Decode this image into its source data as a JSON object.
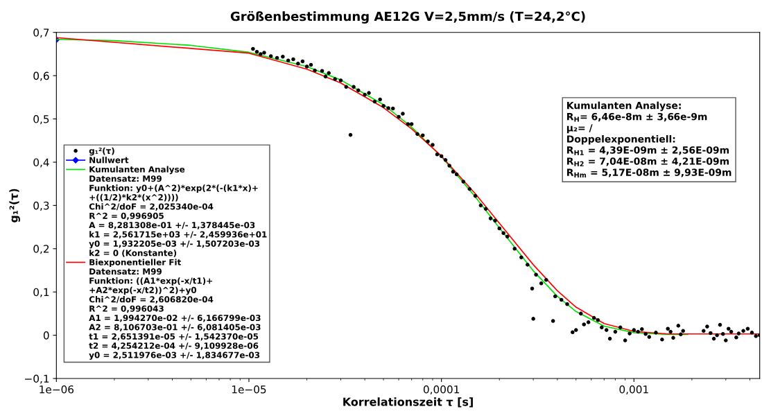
{
  "chart_data": {
    "type": "scatter",
    "title": "Größenbestimmung AE12G V=2,5mm/s (T=24,2°C)",
    "xlabel": "Korrelationszeit τ [s]",
    "ylabel": "g₁²(τ)",
    "log": "x",
    "xlim": [
      1e-06,
      0.0045
    ],
    "xticks": [
      {
        "value": 1e-06,
        "label": "1e−06"
      },
      {
        "value": 1e-05,
        "label": "1e−05"
      },
      {
        "value": 0.0001,
        "label": "0,0001"
      },
      {
        "value": 0.001,
        "label": "0,001"
      }
    ],
    "ylim": [
      -0.1,
      0.7
    ],
    "yticks": [
      {
        "value": -0.1,
        "label": "−0,1"
      },
      {
        "value": 0,
        "label": "0"
      },
      {
        "value": 0.1,
        "label": "0,1"
      },
      {
        "value": 0.2,
        "label": "0,2"
      },
      {
        "value": 0.3,
        "label": "0,3"
      },
      {
        "value": 0.4,
        "label": "0,4"
      },
      {
        "value": 0.5,
        "label": "0,5"
      },
      {
        "value": 0.6,
        "label": "0,6"
      },
      {
        "value": 0.7,
        "label": "0,7"
      }
    ],
    "grid": false,
    "legend": "left",
    "series": [
      {
        "name": "g₁²(τ)",
        "marker": "circle",
        "color": "#000000",
        "x": [
          1.05e-05,
          1.1e-05,
          1.15e-05,
          1.2e-05,
          1.3e-05,
          1.4e-05,
          1.5e-05,
          1.6e-05,
          1.7e-05,
          1.8e-05,
          1.9e-05,
          2e-05,
          2.1e-05,
          2.2e-05,
          2.4e-05,
          2.5e-05,
          2.6e-05,
          2.8e-05,
          3e-05,
          3.2e-05,
          3.37e-05,
          3.5e-05,
          3.7e-05,
          4e-05,
          4.2e-05,
          4.5e-05,
          4.8e-05,
          5e-05,
          5.3e-05,
          5.6e-05,
          6e-05,
          6.3e-05,
          6.7e-05,
          7e-05,
          7.5e-05,
          8e-05,
          8.5e-05,
          9e-05,
          9.5e-05,
          0.0001,
          0.000105,
          0.00011,
          0.000115,
          0.00012,
          0.00013,
          0.00014,
          0.00015,
          0.00016,
          0.00017,
          0.00018,
          0.00019,
          0.0002,
          0.00021,
          0.00022,
          0.00024,
          0.00026,
          0.00028,
          0.000296,
          0.0003,
          0.00031,
          0.00033,
          0.00035,
          0.00038,
          0.00039,
          0.00042,
          0.00045,
          0.00048,
          0.0005,
          0.00053,
          0.00055,
          0.00058,
          0.00062,
          0.00065,
          0.00068,
          0.00072,
          0.00075,
          0.0008,
          0.00085,
          0.0009,
          0.00095,
          0.001,
          0.00105,
          0.0011,
          0.00115,
          0.0012,
          0.0013,
          0.0014,
          0.0015,
          0.00155,
          0.0016,
          0.0017,
          0.00175,
          0.0018,
          0.0023,
          0.0024,
          0.0025,
          0.0026,
          0.0027,
          0.0028,
          0.0029,
          0.003,
          0.0031,
          0.0032,
          0.0034,
          0.0035,
          0.0037,
          0.0039,
          0.0041,
          0.0043,
          0.0045
        ],
        "values": [
          0.662,
          0.655,
          0.65,
          0.653,
          0.645,
          0.641,
          0.644,
          0.635,
          0.638,
          0.628,
          0.633,
          0.621,
          0.625,
          0.612,
          0.611,
          0.598,
          0.606,
          0.592,
          0.589,
          0.574,
          0.463,
          0.574,
          0.566,
          0.556,
          0.56,
          0.54,
          0.545,
          0.53,
          0.525,
          0.524,
          0.505,
          0.512,
          0.488,
          0.488,
          0.465,
          0.462,
          0.448,
          0.44,
          0.418,
          0.414,
          0.405,
          0.392,
          0.378,
          0.372,
          0.355,
          0.338,
          0.322,
          0.3,
          0.292,
          0.27,
          0.265,
          0.247,
          0.236,
          0.228,
          0.2,
          0.18,
          0.163,
          0.108,
          0.038,
          0.14,
          0.12,
          0.128,
          0.033,
          0.09,
          0.082,
          0.072,
          0.007,
          0.012,
          0.05,
          0.025,
          0.03,
          0.04,
          0.035,
          0.018,
          0.012,
          -0.008,
          0.008,
          0.018,
          -0.012,
          0.004,
          0.012,
          0.008,
          0.014,
          0.003,
          -0.004,
          0.006,
          -0.01,
          0.015,
          0.008,
          -0.006,
          0.022,
          0.002,
          0.01,
          0.01,
          0.02,
          0.005,
          -0.008,
          0.0,
          0.024,
          0.003,
          -0.012,
          0.015,
          0.008,
          -0.005,
          0.004,
          0.01,
          0.015,
          0.006,
          -0.002,
          0.0
        ]
      },
      {
        "name": "Nullwert",
        "type": "line",
        "marker": "diamond",
        "color": "#0000ff",
        "x": [
          1e-06
        ],
        "values": [
          0.683
        ]
      },
      {
        "name": "Kumulanten Analyse",
        "type": "line",
        "marker": "none",
        "color": "#00e000",
        "x": [
          1e-06,
          2e-06,
          5e-06,
          1e-05,
          2e-05,
          3e-05,
          5e-05,
          7e-05,
          0.0001,
          0.00015,
          0.0002,
          0.0003,
          0.0004,
          0.0005,
          0.0007,
          0.001,
          0.0015,
          0.0019
        ],
        "values": [
          0.684,
          0.681,
          0.67,
          0.654,
          0.621,
          0.59,
          0.533,
          0.481,
          0.413,
          0.32,
          0.248,
          0.149,
          0.09,
          0.055,
          0.021,
          0.006,
          0.002,
          0.002
        ]
      },
      {
        "name": "Biexponentieller Fit",
        "type": "line",
        "marker": "none",
        "color": "#ff0000",
        "x": [
          1e-06,
          1e-05,
          2e-05,
          3e-05,
          5e-05,
          7e-05,
          0.0001,
          0.00015,
          0.0002,
          0.0003,
          0.0004,
          0.0005,
          0.0007,
          0.001,
          0.0015,
          0.002,
          0.0045
        ],
        "values": [
          0.688,
          0.652,
          0.615,
          0.583,
          0.526,
          0.477,
          0.414,
          0.327,
          0.259,
          0.163,
          0.103,
          0.065,
          0.027,
          0.009,
          0.003,
          0.003,
          0.003
        ]
      }
    ],
    "annotations": [
      "Datensatz: M99\nFunktion: y0+(A^2)*exp(2*(-(k1*x)+\n+((1/2)*k2*(x^2))))\nChi^2/doF = 2,025340e-04\nR^2 = 0,996905\nA = 8,281308e-01 +/- 1,378445e-03\nk1 = 2,561715e+03 +/- 2,459936e+01\ny0 = 1,932205e-03 +/- 1,507203e-03\nk2 = 0 (Konstante)",
      "Datensatz: M99\nFunktion: ((A1*exp(-x/t1)+\n+A2*exp(-x/t2))^2)+y0\nChi^2/doF = 2,606820e-04\nR^2 = 0,996043\nA1 = 1,994270e-02 +/- 6,166799e-03\nA2 = 8,106703e-01 +/- 6,081405e-03\nt1 = 2,651391e-05 +/- 1,542370e-05\nt2 = 4,254212e-04 +/- 9,109928e-06\ny0 = 2,511976e-03 +/- 1,834677e-03",
      "Kumulanten Analyse:\nR$_{H}$= 6,46e-8m ± 3,66e-9m\nμ₂= /\nDoppelexponentiell:\nR$_{H1}$ = 4,39E-09m ± 2,56E-09m\nR$_{H2}$ = 7,04E-08m ± 4,21E-09m\nR$_{Hm}$ = 5,17E-08m ± 9,93E-09m"
    ]
  }
}
